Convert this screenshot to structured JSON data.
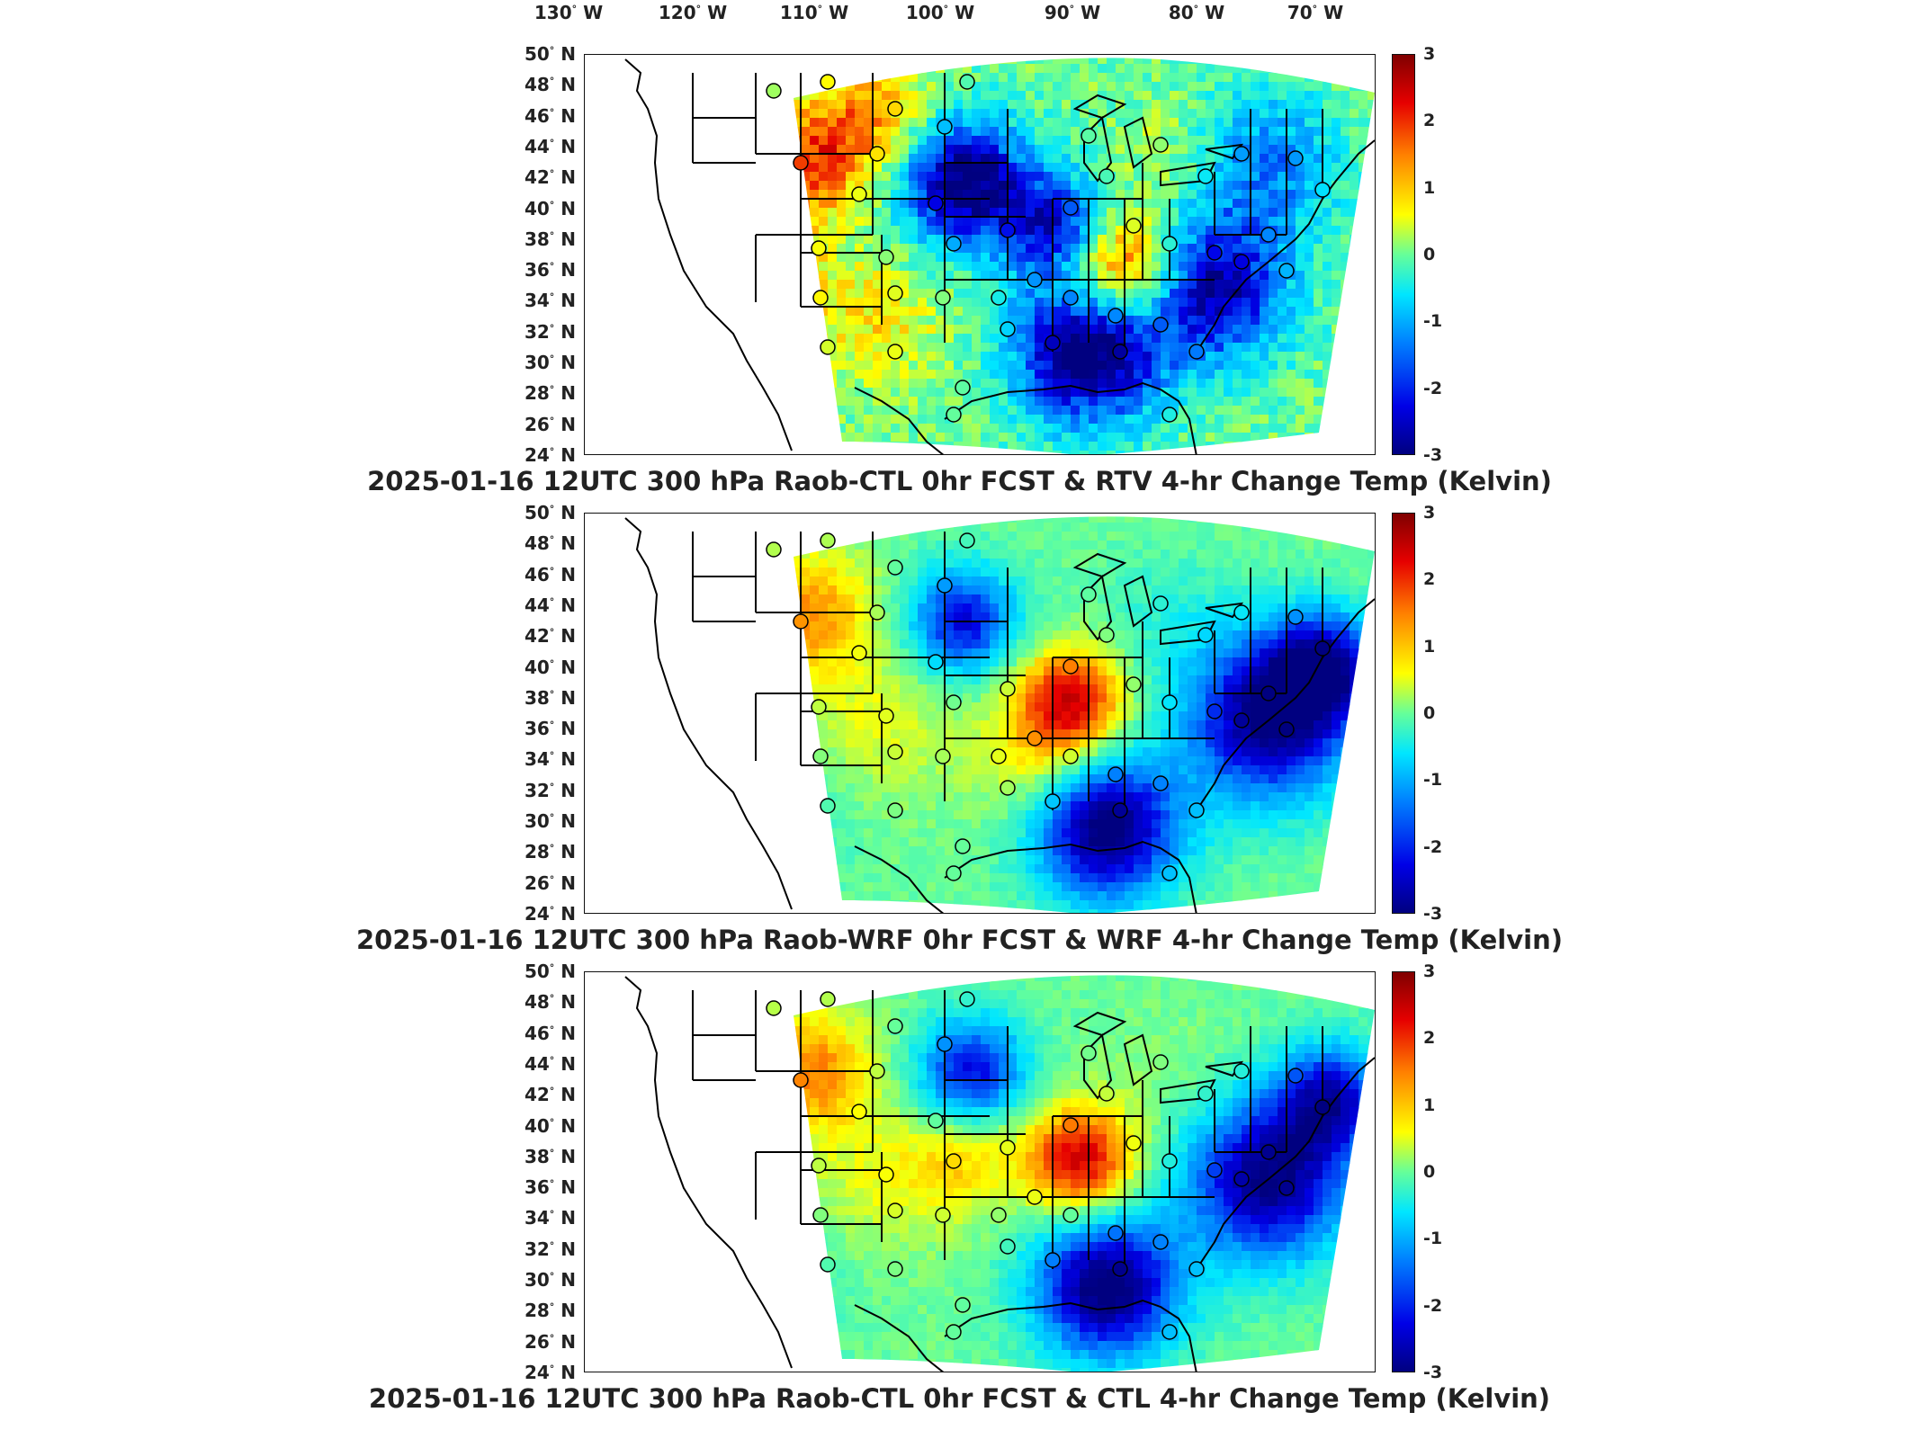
{
  "lon_ticks": [
    {
      "deg": "130",
      "hemi": "W"
    },
    {
      "deg": "120",
      "hemi": "W"
    },
    {
      "deg": "110",
      "hemi": "W"
    },
    {
      "deg": "100",
      "hemi": "W"
    },
    {
      "deg": "90",
      "hemi": "W"
    },
    {
      "deg": "80",
      "hemi": "W"
    },
    {
      "deg": "70",
      "hemi": "W"
    }
  ],
  "lat_ticks": [
    {
      "deg": "50",
      "hemi": "N"
    },
    {
      "deg": "48",
      "hemi": "N"
    },
    {
      "deg": "46",
      "hemi": "N"
    },
    {
      "deg": "44",
      "hemi": "N"
    },
    {
      "deg": "42",
      "hemi": "N"
    },
    {
      "deg": "40",
      "hemi": "N"
    },
    {
      "deg": "38",
      "hemi": "N"
    },
    {
      "deg": "36",
      "hemi": "N"
    },
    {
      "deg": "34",
      "hemi": "N"
    },
    {
      "deg": "32",
      "hemi": "N"
    },
    {
      "deg": "30",
      "hemi": "N"
    },
    {
      "deg": "28",
      "hemi": "N"
    },
    {
      "deg": "26",
      "hemi": "N"
    },
    {
      "deg": "24",
      "hemi": "N"
    }
  ],
  "colorbar": {
    "ticks": [
      "3",
      "2",
      "1",
      "0",
      "-1",
      "-2",
      "-3"
    ],
    "range": [
      -3,
      3
    ],
    "colormap": "jet",
    "colors": [
      "#800000",
      "#e60000",
      "#ff8000",
      "#ffff00",
      "#66ff99",
      "#00e6ff",
      "#0080ff",
      "#0000e6",
      "#000080"
    ]
  },
  "panels": [
    {
      "caption": "2025-01-16 12UTC 300 hPa Raob-CTL 0hr FCST & RTV 4-hr Change Temp (Kelvin)"
    },
    {
      "caption": "2025-01-16 12UTC 300 hPa Raob-WRF 0hr FCST & WRF 4-hr Change Temp (Kelvin)"
    },
    {
      "caption": "2025-01-16 12UTC 300 hPa Raob-CTL 0hr FCST & CTL 4-hr Change Temp (Kelvin)"
    }
  ],
  "map_colors": {
    "boundary": "#000000",
    "ocean_land": "#ffffff",
    "station_marker": "#000000"
  }
}
